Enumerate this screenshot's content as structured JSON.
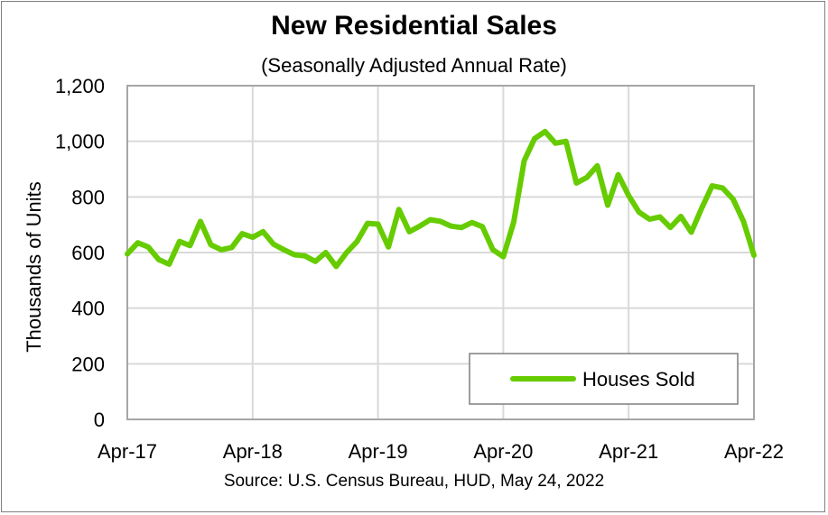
{
  "chart_data": {
    "type": "line",
    "title": "New Residential Sales",
    "subtitle": "(Seasonally Adjusted Annual Rate)",
    "ylabel": "Thousands of Units",
    "xlabel": "",
    "source": "Source:  U.S. Census Bureau, HUD, May 24, 2022",
    "ylim": [
      0,
      1200
    ],
    "y_ticks": [
      "0",
      "200",
      "400",
      "600",
      "800",
      "1,000",
      "1,200"
    ],
    "x_tick_labels": [
      "Apr-17",
      "Apr-18",
      "Apr-19",
      "Apr-20",
      "Apr-21",
      "Apr-22"
    ],
    "grid": true,
    "legend_position": "bottom-right",
    "series_color": "#66cc00",
    "series": [
      {
        "name": "Houses Sold",
        "x": [
          "Apr-17",
          "May-17",
          "Jun-17",
          "Jul-17",
          "Aug-17",
          "Sep-17",
          "Oct-17",
          "Nov-17",
          "Dec-17",
          "Jan-18",
          "Feb-18",
          "Mar-18",
          "Apr-18",
          "May-18",
          "Jun-18",
          "Jul-18",
          "Aug-18",
          "Sep-18",
          "Oct-18",
          "Nov-18",
          "Dec-18",
          "Jan-19",
          "Feb-19",
          "Mar-19",
          "Apr-19",
          "May-19",
          "Jun-19",
          "Jul-19",
          "Aug-19",
          "Sep-19",
          "Oct-19",
          "Nov-19",
          "Dec-19",
          "Jan-20",
          "Feb-20",
          "Mar-20",
          "Apr-20",
          "May-20",
          "Jun-20",
          "Jul-20",
          "Aug-20",
          "Sep-20",
          "Oct-20",
          "Nov-20",
          "Dec-20",
          "Jan-21",
          "Feb-21",
          "Mar-21",
          "Apr-21",
          "May-21",
          "Jun-21",
          "Jul-21",
          "Aug-21",
          "Sep-21",
          "Oct-21",
          "Nov-21",
          "Dec-21",
          "Jan-22",
          "Feb-22",
          "Mar-22",
          "Apr-22"
        ],
        "values": [
          595,
          635,
          620,
          575,
          558,
          640,
          625,
          712,
          628,
          610,
          618,
          668,
          655,
          675,
          630,
          610,
          592,
          588,
          568,
          600,
          550,
          600,
          640,
          705,
          702,
          620,
          755,
          675,
          695,
          718,
          712,
          695,
          690,
          708,
          693,
          610,
          585,
          710,
          930,
          1010,
          1035,
          993,
          1000,
          850,
          870,
          912,
          770,
          880,
          805,
          745,
          720,
          728,
          690,
          730,
          673,
          760,
          840,
          832,
          792,
          712,
          590
        ]
      }
    ]
  }
}
